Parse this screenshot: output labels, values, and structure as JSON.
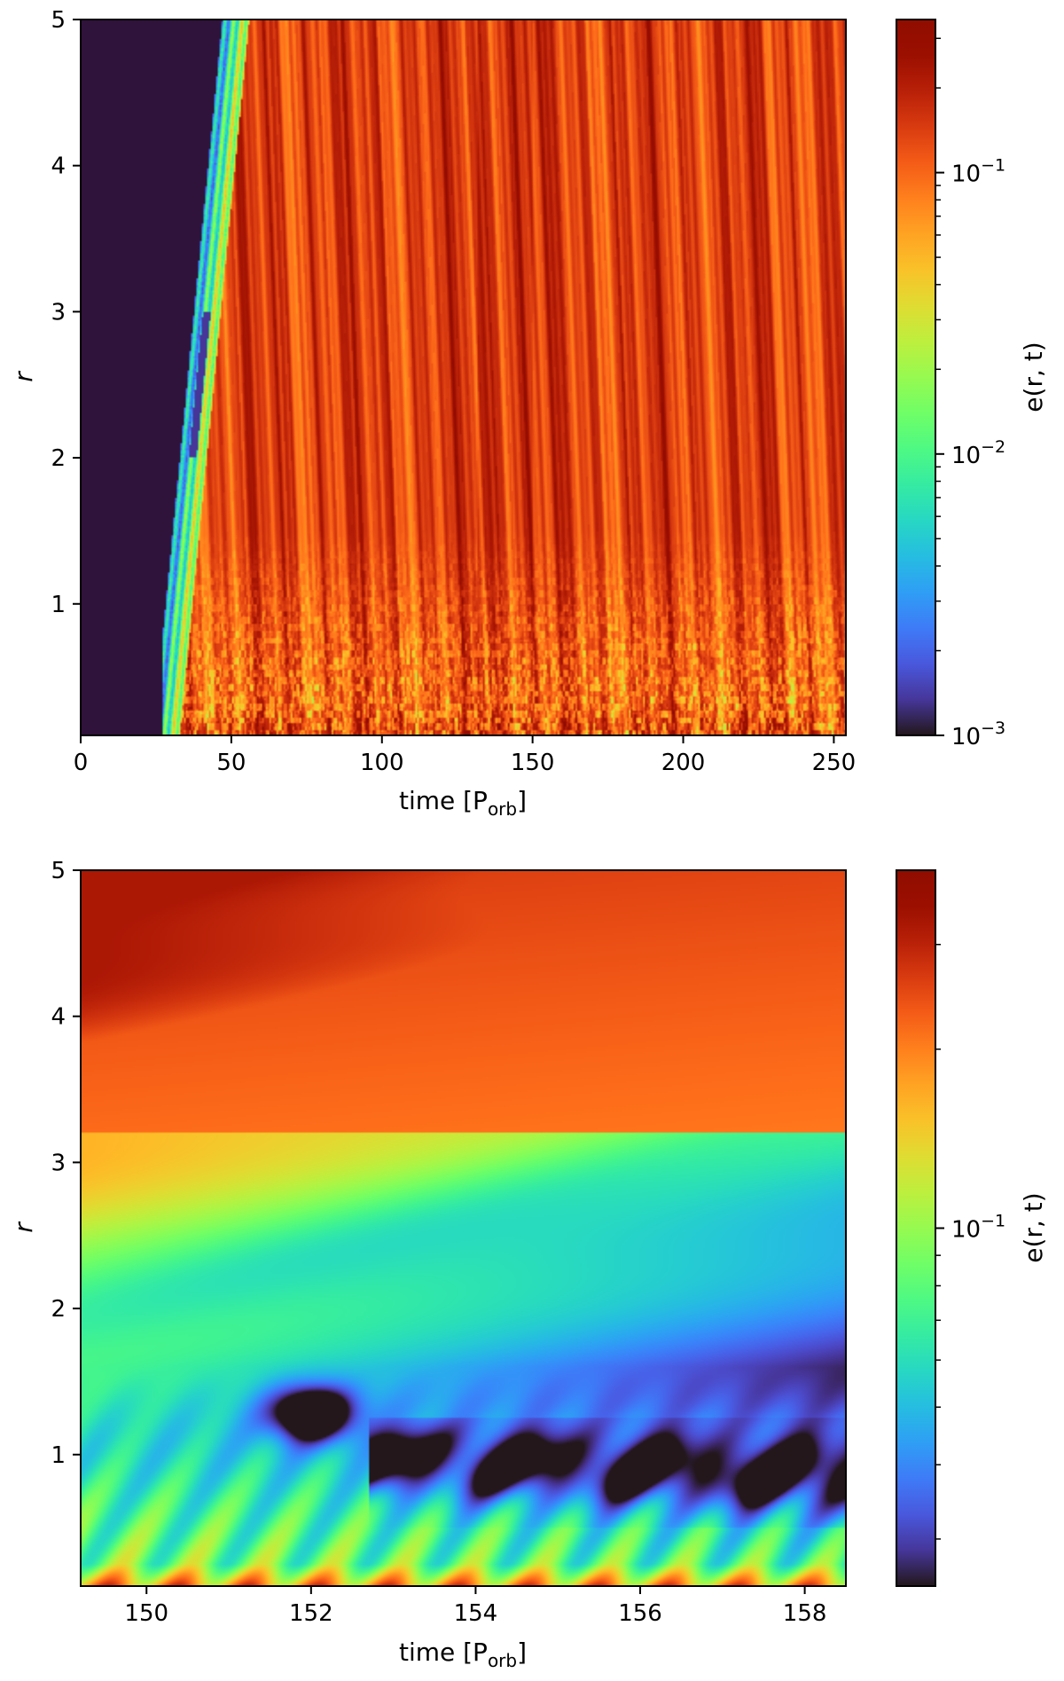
{
  "chart_data": [
    {
      "type": "heatmap",
      "title": "",
      "xlabel": "time [P",
      "xlabel_sub": "orb",
      "xlabel_close": "]",
      "ylabel": "r",
      "x_range": [
        0,
        254
      ],
      "y_range": [
        0.1,
        5
      ],
      "x_ticks": [
        {
          "value": 0,
          "label": "0"
        },
        {
          "value": 50,
          "label": "50"
        },
        {
          "value": 100,
          "label": "100"
        },
        {
          "value": 150,
          "label": "150"
        },
        {
          "value": 200,
          "label": "200"
        },
        {
          "value": 250,
          "label": "250"
        }
      ],
      "y_ticks": [
        {
          "value": 1,
          "label": "1"
        },
        {
          "value": 2,
          "label": "2"
        },
        {
          "value": 3,
          "label": "3"
        },
        {
          "value": 4,
          "label": "4"
        },
        {
          "value": 5,
          "label": "5"
        }
      ],
      "colorbar": {
        "label": "e(r, t)",
        "scale": "log",
        "range": [
          0.001,
          0.35
        ],
        "ticks": [
          {
            "value": 0.001,
            "base": "10",
            "exp": "−3"
          },
          {
            "value": 0.01,
            "base": "10",
            "exp": "−2"
          },
          {
            "value": 0.1,
            "base": "10",
            "exp": "−1"
          }
        ],
        "colormap": "turbo"
      },
      "features": {
        "empty_region_until_time": 27,
        "front_reaches_r5_at_time": 50,
        "background_color": "#2f133b"
      }
    },
    {
      "type": "heatmap",
      "title": "",
      "xlabel": "time [P",
      "xlabel_sub": "orb",
      "xlabel_close": "]",
      "ylabel": "r",
      "x_range": [
        149.2,
        158.5
      ],
      "y_range": [
        0.1,
        5
      ],
      "x_ticks": [
        {
          "value": 150,
          "label": "150"
        },
        {
          "value": 152,
          "label": "152"
        },
        {
          "value": 154,
          "label": "154"
        },
        {
          "value": 156,
          "label": "156"
        },
        {
          "value": 158,
          "label": "158"
        }
      ],
      "y_ticks": [
        {
          "value": 1,
          "label": "1"
        },
        {
          "value": 2,
          "label": "2"
        },
        {
          "value": 3,
          "label": "3"
        },
        {
          "value": 4,
          "label": "4"
        },
        {
          "value": 5,
          "label": "5"
        }
      ],
      "colorbar": {
        "label": "e(r, t)",
        "scale": "log",
        "range": [
          0.025,
          0.4
        ],
        "ticks": [
          {
            "value": 0.1,
            "base": "10",
            "exp": "−1"
          }
        ],
        "colormap": "turbo"
      }
    }
  ]
}
